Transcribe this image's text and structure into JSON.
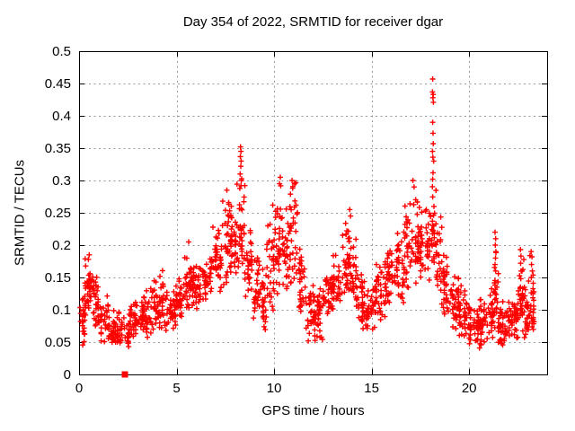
{
  "page": {
    "background": "#ffffff"
  },
  "chart_data": {
    "type": "scatter",
    "title": "Day 354 of 2022, SRMTID for receiver dgar",
    "xlabel": "GPS time / hours",
    "ylabel": "SRMTID / TECUs",
    "xlim": [
      0,
      24
    ],
    "ylim": [
      0,
      0.5
    ],
    "xtick_values": [
      0,
      5,
      10,
      15,
      20
    ],
    "xtick_labels": [
      "0",
      "5",
      "10",
      "15",
      "20"
    ],
    "ytick_values": [
      0,
      0.05,
      0.1,
      0.15,
      0.2,
      0.25,
      0.3,
      0.35,
      0.4,
      0.45,
      0.5
    ],
    "ytick_labels": [
      "0",
      "0.05",
      "0.1",
      "0.15",
      "0.2",
      "0.25",
      "0.3",
      "0.35",
      "0.4",
      "0.45",
      "0.5"
    ],
    "grid": "dotted",
    "legend": "none",
    "colors": {
      "marker": "#ff0000",
      "grid": "#999999",
      "axis": "#000000",
      "text": "#000000"
    },
    "seed": 1354,
    "series": [
      {
        "name": "SRMTID",
        "marker": "plus",
        "color": "#ff0000",
        "density_bins": [
          [
            0.05,
            0.3,
            0.04,
            0.13,
            22
          ],
          [
            0.3,
            0.75,
            0.09,
            0.185,
            40
          ],
          [
            0.75,
            1.1,
            0.06,
            0.16,
            30
          ],
          [
            1.1,
            1.6,
            0.05,
            0.125,
            35
          ],
          [
            1.6,
            2.3,
            0.04,
            0.105,
            50
          ],
          [
            2.3,
            2.6,
            0.035,
            0.095,
            22
          ],
          [
            2.6,
            3.3,
            0.05,
            0.12,
            50
          ],
          [
            3.3,
            3.8,
            0.055,
            0.14,
            36
          ],
          [
            3.8,
            4.1,
            0.06,
            0.16,
            22
          ],
          [
            4.1,
            4.5,
            0.06,
            0.17,
            30
          ],
          [
            4.5,
            5.0,
            0.07,
            0.14,
            36
          ],
          [
            5.0,
            5.4,
            0.08,
            0.16,
            30
          ],
          [
            5.4,
            5.8,
            0.1,
            0.2,
            32
          ],
          [
            5.8,
            6.3,
            0.1,
            0.17,
            36
          ],
          [
            6.3,
            6.8,
            0.11,
            0.2,
            36
          ],
          [
            6.8,
            7.3,
            0.12,
            0.24,
            38
          ],
          [
            7.3,
            7.8,
            0.13,
            0.28,
            40
          ],
          [
            7.8,
            8.1,
            0.14,
            0.27,
            26
          ],
          [
            8.1,
            8.5,
            0.15,
            0.32,
            34
          ],
          [
            8.5,
            8.9,
            0.11,
            0.25,
            30
          ],
          [
            8.9,
            9.3,
            0.07,
            0.2,
            28
          ],
          [
            9.3,
            9.6,
            0.06,
            0.18,
            24
          ],
          [
            9.6,
            10.0,
            0.09,
            0.25,
            30
          ],
          [
            10.0,
            10.5,
            0.12,
            0.3,
            40
          ],
          [
            10.5,
            10.8,
            0.12,
            0.26,
            24
          ],
          [
            10.8,
            11.2,
            0.13,
            0.3,
            32
          ],
          [
            11.2,
            11.6,
            0.09,
            0.22,
            30
          ],
          [
            11.6,
            12.1,
            0.05,
            0.16,
            36
          ],
          [
            12.1,
            12.5,
            0.05,
            0.14,
            30
          ],
          [
            12.5,
            13.0,
            0.07,
            0.18,
            36
          ],
          [
            13.0,
            13.4,
            0.09,
            0.2,
            30
          ],
          [
            13.4,
            13.9,
            0.11,
            0.25,
            38
          ],
          [
            13.9,
            14.2,
            0.1,
            0.23,
            24
          ],
          [
            14.2,
            14.7,
            0.07,
            0.17,
            36
          ],
          [
            14.7,
            15.2,
            0.06,
            0.15,
            36
          ],
          [
            15.2,
            15.7,
            0.08,
            0.18,
            36
          ],
          [
            15.7,
            16.2,
            0.1,
            0.21,
            36
          ],
          [
            16.2,
            16.7,
            0.11,
            0.24,
            38
          ],
          [
            16.7,
            17.1,
            0.12,
            0.28,
            32
          ],
          [
            17.1,
            17.5,
            0.13,
            0.29,
            32
          ],
          [
            17.5,
            18.0,
            0.13,
            0.27,
            38
          ],
          [
            18.0,
            18.3,
            0.15,
            0.3,
            28
          ],
          [
            18.3,
            18.6,
            0.12,
            0.27,
            24
          ],
          [
            18.6,
            19.0,
            0.09,
            0.2,
            30
          ],
          [
            19.0,
            19.5,
            0.07,
            0.16,
            36
          ],
          [
            19.5,
            20.0,
            0.05,
            0.14,
            38
          ],
          [
            20.0,
            20.5,
            0.04,
            0.115,
            40
          ],
          [
            20.5,
            21.0,
            0.035,
            0.125,
            40
          ],
          [
            21.0,
            21.3,
            0.05,
            0.14,
            24
          ],
          [
            21.3,
            21.5,
            0.06,
            0.22,
            20
          ],
          [
            21.5,
            22.0,
            0.04,
            0.115,
            40
          ],
          [
            22.0,
            22.5,
            0.05,
            0.125,
            40
          ],
          [
            22.5,
            22.8,
            0.06,
            0.19,
            26
          ],
          [
            22.8,
            23.05,
            0.05,
            0.14,
            22
          ],
          [
            23.05,
            23.35,
            0.05,
            0.19,
            26
          ]
        ],
        "outlier_points": [
          [
            0.48,
            0.178
          ],
          [
            0.52,
            0.185
          ],
          [
            5.62,
            0.205
          ],
          [
            7.58,
            0.285
          ],
          [
            8.26,
            0.31
          ],
          [
            8.27,
            0.337
          ],
          [
            8.28,
            0.352
          ],
          [
            8.29,
            0.322
          ],
          [
            8.3,
            0.345
          ],
          [
            8.31,
            0.33
          ],
          [
            8.32,
            0.3
          ],
          [
            8.3,
            0.292
          ],
          [
            9.93,
            0.262
          ],
          [
            10.28,
            0.295
          ],
          [
            10.32,
            0.305
          ],
          [
            10.92,
            0.3
          ],
          [
            10.95,
            0.288
          ],
          [
            11.05,
            0.295
          ],
          [
            13.88,
            0.255
          ],
          [
            13.92,
            0.245
          ],
          [
            17.12,
            0.3
          ],
          [
            17.18,
            0.29
          ],
          [
            18.13,
            0.457
          ],
          [
            18.12,
            0.437
          ],
          [
            18.16,
            0.433
          ],
          [
            18.14,
            0.428
          ],
          [
            18.17,
            0.421
          ],
          [
            18.13,
            0.39
          ],
          [
            18.15,
            0.373
          ],
          [
            18.16,
            0.357
          ],
          [
            18.12,
            0.345
          ],
          [
            18.14,
            0.336
          ],
          [
            18.18,
            0.33
          ],
          [
            18.15,
            0.312
          ],
          [
            18.13,
            0.302
          ],
          [
            21.33,
            0.22
          ],
          [
            21.36,
            0.21
          ],
          [
            21.34,
            0.2
          ],
          [
            21.37,
            0.19
          ],
          [
            21.35,
            0.18
          ],
          [
            21.33,
            0.17
          ],
          [
            21.36,
            0.16
          ],
          [
            22.63,
            0.193
          ],
          [
            22.66,
            0.183
          ],
          [
            22.64,
            0.172
          ],
          [
            22.67,
            0.16
          ],
          [
            22.65,
            0.148
          ],
          [
            22.63,
            0.135
          ],
          [
            22.66,
            0.122
          ],
          [
            22.64,
            0.11
          ],
          [
            23.18,
            0.19
          ],
          [
            23.22,
            0.182
          ],
          [
            23.2,
            0.17
          ],
          [
            23.24,
            0.16
          ],
          [
            23.19,
            0.15
          ]
        ]
      },
      {
        "name": "baseline marker",
        "marker": "filled-square",
        "color": "#ff0000",
        "points": [
          [
            2.35,
            0
          ]
        ]
      }
    ]
  }
}
